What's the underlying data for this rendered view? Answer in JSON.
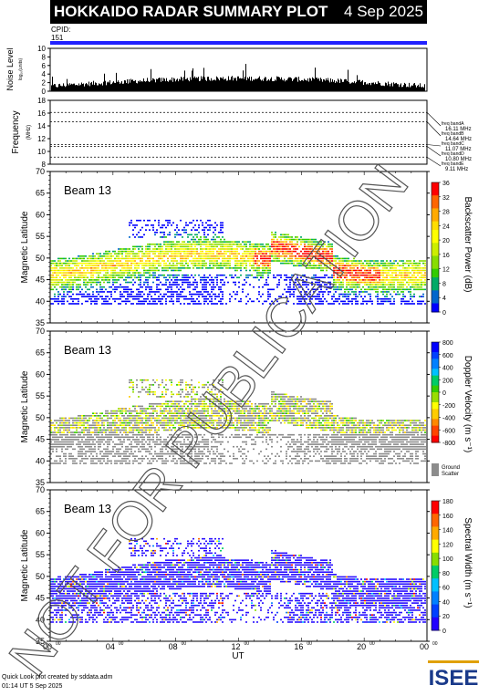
{
  "header": {
    "title": "HOKKAIDO RADAR SUMMARY PLOT",
    "date": "4 Sep 2025",
    "cpid_label": "CPID:",
    "cpid_value": "151"
  },
  "noise_panel": {
    "ylabel": "Noise Level",
    "ylabel_sub": "log₁₀(units)",
    "yticks": [
      "10",
      "8",
      "6",
      "4",
      "2",
      "0"
    ],
    "ylim": [
      0,
      10
    ]
  },
  "freq_panel": {
    "ylabel": "Frequency",
    "ylabel_unit": "(MHz)",
    "yticks": [
      "18",
      "16",
      "14",
      "12",
      "10",
      "8"
    ],
    "ylim": [
      8,
      18
    ],
    "bands": [
      {
        "name": "freq bandA",
        "value": "16.11 MHz",
        "f": 16.11
      },
      {
        "name": "freq bandB",
        "value": "14.64 MHz",
        "f": 14.64
      },
      {
        "name": "freq bandC",
        "value": "11.07 MHz",
        "f": 11.07
      },
      {
        "name": "freq bandD",
        "value": "10.80 MHz",
        "f": 10.8
      },
      {
        "name": "freq bandE",
        "value": "9.11 MHz",
        "f": 9.11
      }
    ]
  },
  "beam_panels": [
    {
      "beam_label": "Beam 13",
      "ylabel": "Magnetic Latitude",
      "cbar_label": "Backscatter Power (dB)",
      "cbar_ticks": [
        "36",
        "32",
        "28",
        "24",
        "20",
        "16",
        "12",
        "8",
        "4",
        "0"
      ],
      "ground_scatter": false
    },
    {
      "beam_label": "Beam 13",
      "ylabel": "Magnetic Latitude",
      "cbar_label": "Doppler Velocity (m s⁻¹)",
      "cbar_ticks": [
        "800",
        "600",
        "400",
        "200",
        "0",
        "-200",
        "-400",
        "-600",
        "-800"
      ],
      "ground_scatter": true,
      "ground_label_1": "Ground",
      "ground_label_2": "Scatter"
    },
    {
      "beam_label": "Beam 13",
      "ylabel": "Magnetic Latitude",
      "cbar_label": "Spectral Width (m s⁻¹)",
      "cbar_ticks": [
        "180",
        "160",
        "140",
        "120",
        "100",
        "80",
        "60",
        "40",
        "20",
        "0"
      ],
      "ground_scatter": false
    }
  ],
  "chart_data": {
    "type": "heatmap",
    "xlabel": "UT",
    "xlim": [
      0,
      24
    ],
    "xticks": [
      "00",
      "04",
      "08",
      "12",
      "16",
      "20",
      "00"
    ],
    "xtick_sup": "00",
    "ylim": [
      35,
      70
    ],
    "yticks": [
      "70",
      "65",
      "60",
      "55",
      "50",
      "45",
      "40",
      "35"
    ],
    "colors": {
      "title_bg": "#000000",
      "cpid_bar": "#2020ff",
      "ground_scatter": "#8c8c8c"
    }
  },
  "watermark": "NOT FOR PUBLICATION",
  "footer": {
    "line1": "Quick Look plot created by sddata.adm",
    "line2": "01:14 UT  5 Sep 2025"
  },
  "logo": "ISEE"
}
